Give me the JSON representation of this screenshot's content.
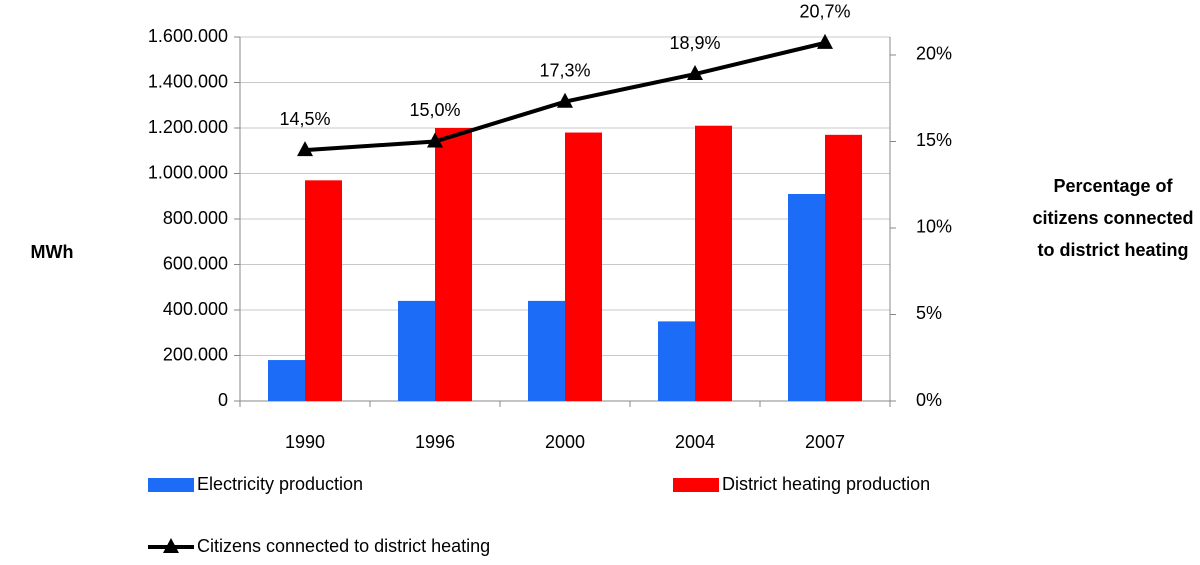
{
  "chart_data": {
    "type": "bar_line",
    "categories": [
      "1990",
      "1996",
      "2000",
      "2004",
      "2007"
    ],
    "series": [
      {
        "name": "Electricity production",
        "color": "#1c6cf8",
        "values": [
          180000,
          440000,
          440000,
          350000,
          910000
        ]
      },
      {
        "name": "District heating production",
        "color": "#ff0000",
        "values": [
          970000,
          1200000,
          1180000,
          1210000,
          1170000
        ]
      },
      {
        "name": "Citizens connected to district heating",
        "color": "#000000",
        "axis": "y2",
        "type": "line",
        "values": [
          14.5,
          15.0,
          17.3,
          18.9,
          20.7
        ],
        "value_labels": [
          "14,5%",
          "15,0%",
          "17,3%",
          "18,9%",
          "20,7%"
        ]
      }
    ],
    "ylabel": "MWh",
    "y2label": [
      "Percentage of",
      "citizens connected",
      "to district heating"
    ],
    "ylim": [
      0,
      1600000
    ],
    "yticks": [
      0,
      {
        "value": 200000,
        "label": "200.000"
      },
      {
        "value": 400000,
        "label": "400.000"
      },
      {
        "value": 600000,
        "label": "600.000"
      },
      {
        "value": 800000,
        "label": "800.000"
      },
      {
        "value": 1000000,
        "label": "1.000.000"
      },
      {
        "value": 1200000,
        "label": "1.200.000"
      },
      {
        "value": 1400000,
        "label": "1.400.000"
      },
      {
        "value": 1600000,
        "label": "1.600.000"
      }
    ],
    "y2lim": [
      0,
      21.04
    ],
    "y2ticks": [
      {
        "value": 0,
        "label": "0%"
      },
      {
        "value": 5,
        "label": "5%"
      },
      {
        "value": 10,
        "label": "10%"
      },
      {
        "value": 15,
        "label": "15%"
      },
      {
        "value": 20,
        "label": "20%"
      }
    ],
    "grid": true
  }
}
